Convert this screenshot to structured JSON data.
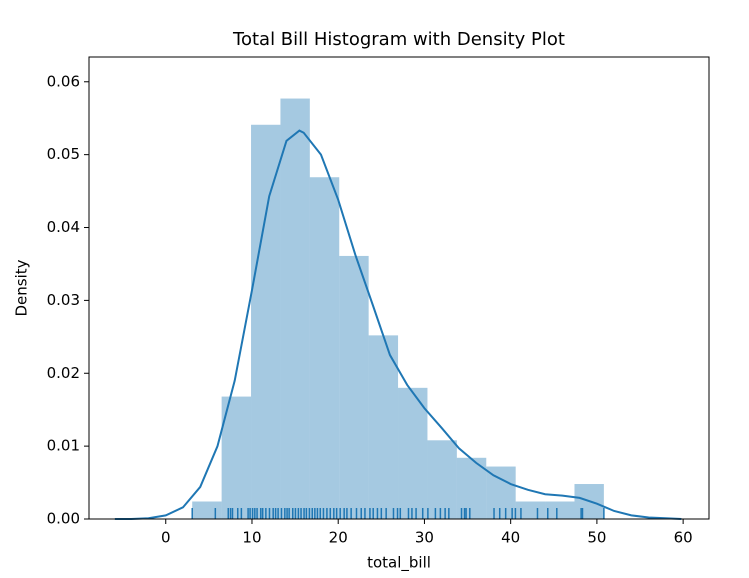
{
  "chart_data": {
    "type": "histogram",
    "title": "Total Bill Histogram with Density Plot",
    "x_label": "total_bill",
    "y_label": "Density",
    "bins": [
      3.07,
      6.48,
      9.89,
      13.3,
      16.71,
      20.12,
      23.53,
      26.94,
      30.35,
      33.76,
      37.17,
      40.58,
      43.99,
      47.4,
      50.81
    ],
    "values": [
      0.0024,
      0.0168,
      0.0541,
      0.0577,
      0.0469,
      0.0361,
      0.0252,
      0.018,
      0.0108,
      0.0084,
      0.0072,
      0.0024,
      0.0024,
      0.0048
    ],
    "color": "#1f77b4",
    "kde_x": [
      -5.9,
      -4,
      -2,
      0,
      2,
      4,
      6,
      8,
      10,
      12,
      14,
      15.5,
      16,
      18,
      20,
      22,
      24,
      26,
      28,
      30,
      32,
      34,
      36,
      38,
      40,
      42,
      44,
      46,
      48,
      50,
      52,
      54,
      56,
      58,
      59.8
    ],
    "kde_y": [
      0,
      0,
      0.0001,
      0.0005,
      0.0016,
      0.0044,
      0.01,
      0.019,
      0.0314,
      0.0443,
      0.0519,
      0.0533,
      0.053,
      0.05,
      0.0438,
      0.0362,
      0.0294,
      0.0225,
      0.0184,
      0.0152,
      0.0125,
      0.0097,
      0.0077,
      0.006,
      0.0048,
      0.004,
      0.0034,
      0.0032,
      0.0029,
      0.0021,
      0.0011,
      0.0005,
      0.0002,
      0.0001,
      0
    ],
    "rug": [
      3.07,
      5.75,
      7.25,
      7.51,
      7.74,
      8.35,
      8.77,
      9.55,
      9.78,
      10.07,
      10.33,
      10.59,
      11.02,
      11.24,
      11.61,
      12.03,
      12.46,
      12.74,
      13.03,
      13.42,
      13.81,
      14.07,
      14.31,
      14.73,
      15.04,
      15.38,
      15.69,
      16.04,
      16.31,
      16.66,
      16.99,
      17.29,
      17.59,
      17.92,
      18.29,
      18.69,
      19.08,
      19.49,
      19.82,
      20.23,
      20.69,
      21.01,
      21.5,
      22.12,
      22.67,
      23.1,
      23.68,
      24.06,
      24.55,
      25.0,
      25.56,
      26.41,
      26.88,
      27.2,
      28.15,
      28.55,
      29.03,
      29.8,
      30.4,
      31.27,
      31.85,
      32.4,
      32.83,
      34.3,
      34.65,
      34.83,
      35.26,
      38.07,
      38.73,
      39.42,
      40.17,
      40.55,
      41.19,
      43.11,
      44.3,
      45.35,
      48.17,
      48.33,
      50.81
    ],
    "xlim": [
      -8.9,
      63.0
    ],
    "ylim": [
      0,
      0.0634
    ],
    "xticks": [
      0,
      10,
      20,
      30,
      40,
      50,
      60
    ],
    "yticks": [
      {
        "value": 0,
        "label": "0.00"
      },
      0.01,
      0.02,
      0.03,
      0.04,
      0.05,
      0.06
    ]
  }
}
